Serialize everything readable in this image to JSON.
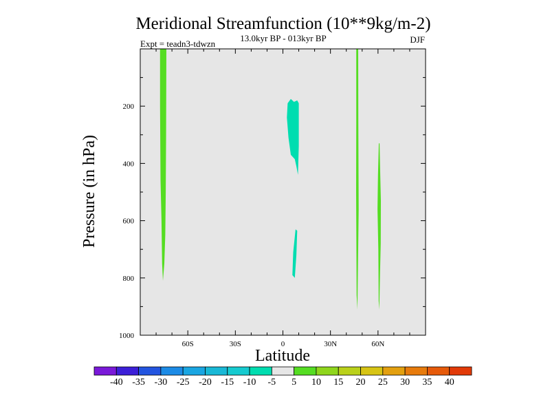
{
  "chart_data": {
    "type": "heatmap",
    "title": "Meridional Streamfunction (10**9kg/m-2)",
    "subtitle": "13.0kyr BP - 013kyr BP",
    "left_label": "Expt = teadn3-tdwzn",
    "right_label": "DJF",
    "xlabel": "Latitude",
    "ylabel": "Pressure (in hPa)",
    "xlim": [
      -90,
      90
    ],
    "ylim": [
      1000,
      0
    ],
    "x_ticks": [
      {
        "value": -60,
        "label": "60S"
      },
      {
        "value": -30,
        "label": "30S"
      },
      {
        "value": 0,
        "label": "0"
      },
      {
        "value": 30,
        "label": "30N"
      },
      {
        "value": 60,
        "label": "60N"
      }
    ],
    "y_ticks": [
      {
        "value": 200,
        "label": "200"
      },
      {
        "value": 400,
        "label": "400"
      },
      {
        "value": 600,
        "label": "600"
      },
      {
        "value": 800,
        "label": "800"
      },
      {
        "value": 1000,
        "label": "1000"
      }
    ],
    "background_color": "#e6e6e6",
    "regions": [
      {
        "name": "positive-5-10-60s-column",
        "color": "#55dd22",
        "points": [
          [
            -77.5,
            0
          ],
          [
            -73.5,
            0
          ],
          [
            -73.7,
            300
          ],
          [
            -73.9,
            500
          ],
          [
            -74.2,
            650
          ],
          [
            -74.8,
            750
          ],
          [
            -75.7,
            810
          ],
          [
            -76.2,
            750
          ],
          [
            -76.6,
            600
          ],
          [
            -77.2,
            460
          ],
          [
            -77.5,
            200
          ]
        ]
      },
      {
        "name": "negative-10-5-upper-equatorial",
        "color": "#00ddb0",
        "points": [
          [
            3,
            190
          ],
          [
            5,
            175
          ],
          [
            7,
            185
          ],
          [
            9,
            180
          ],
          [
            10,
            190
          ],
          [
            10,
            340
          ],
          [
            9.5,
            440
          ],
          [
            8.5,
            410
          ],
          [
            7.5,
            385
          ],
          [
            5,
            370
          ],
          [
            3.5,
            310
          ],
          [
            2.5,
            240
          ]
        ]
      },
      {
        "name": "negative-10-5-lower-equatorial",
        "color": "#00ddb0",
        "points": [
          [
            8,
            630
          ],
          [
            9,
            635
          ],
          [
            8.5,
            720
          ],
          [
            7.5,
            800
          ],
          [
            6,
            790
          ],
          [
            6.5,
            710
          ]
        ]
      },
      {
        "name": "positive-5-10-47n-column",
        "color": "#55dd22",
        "points": [
          [
            46.3,
            0
          ],
          [
            47.5,
            0
          ],
          [
            47.6,
            250
          ],
          [
            47.8,
            560
          ],
          [
            47.5,
            700
          ],
          [
            47,
            910
          ],
          [
            46.5,
            860
          ],
          [
            46.2,
            500
          ],
          [
            46.3,
            250
          ]
        ]
      },
      {
        "name": "positive-5-10-60n-column",
        "color": "#55dd22",
        "points": [
          [
            60.5,
            330
          ],
          [
            61,
            330
          ],
          [
            61.4,
            440
          ],
          [
            61.8,
            530
          ],
          [
            61.7,
            680
          ],
          [
            61.3,
            780
          ],
          [
            60.8,
            910
          ],
          [
            60.4,
            880
          ],
          [
            60.2,
            700
          ],
          [
            59.7,
            560
          ],
          [
            60,
            440
          ]
        ]
      }
    ],
    "colorbar": {
      "labels": [
        "-40",
        "-35",
        "-30",
        "-25",
        "-20",
        "-15",
        "-10",
        "-5",
        "5",
        "10",
        "15",
        "20",
        "25",
        "30",
        "35",
        "40"
      ],
      "colors": [
        "#7a19d9",
        "#3c1fd8",
        "#2355e0",
        "#1c8be6",
        "#1aa6e2",
        "#19b8d6",
        "#16cbd0",
        "#00ddb0",
        "#e6e6e6",
        "#55dd22",
        "#8fd61c",
        "#bad11a",
        "#d7c414",
        "#e3a00f",
        "#e77b0c",
        "#e65a0a",
        "#e23a08"
      ]
    }
  }
}
